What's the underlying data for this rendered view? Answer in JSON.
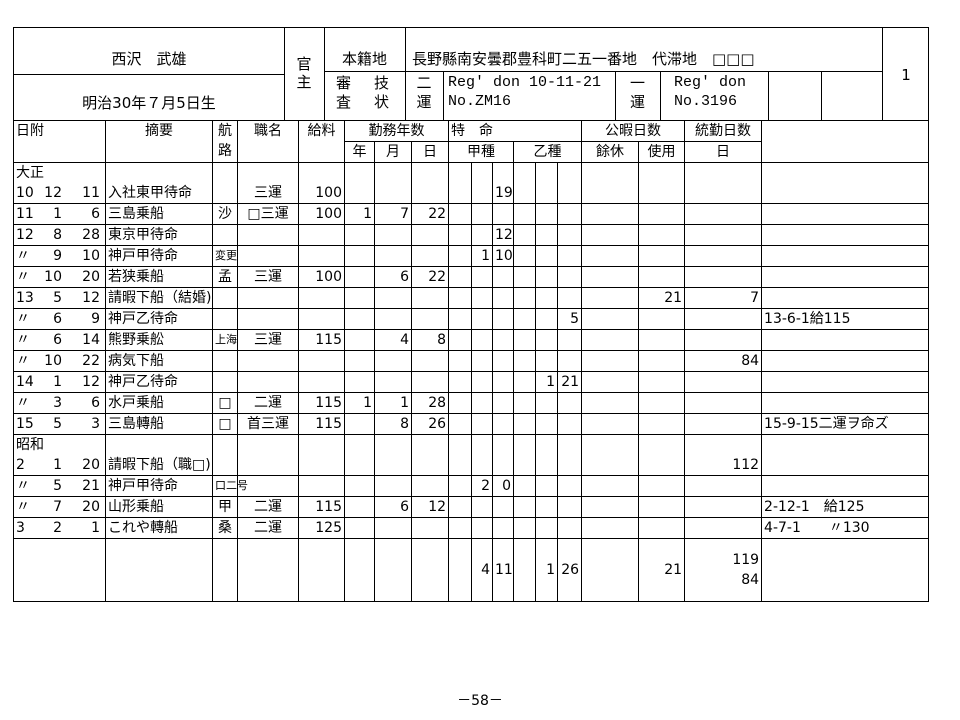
{
  "header": {
    "name": "西沢　武雄",
    "birth": "明治30年７月5日生",
    "official_top": "官",
    "official_bottom": "主",
    "domicile_label": "本籍地",
    "domicile_value": "長野縣南安曇郡豊科町二五一番地　代滞地　□□□",
    "exam_label_1": "審",
    "exam_label_2": "査",
    "skill_label_1": "技",
    "skill_label_2": "状",
    "grade2_1": "二",
    "grade2_2": "運",
    "reg2_line1": "Reg' don 10-11-21",
    "reg2_line2": "No.ZM16",
    "grade1_1": "一",
    "grade1_2": "運",
    "reg1_line1": "Reg' don",
    "reg1_line2": "No.3196",
    "sheet_number": "1"
  },
  "columns": {
    "date": "日附",
    "summary": "摘要",
    "route_1": "航",
    "route_2": "路",
    "rank": "職名",
    "pay": "給料",
    "service": "勤務年数",
    "year": "年",
    "month": "月",
    "day": "日",
    "special": "特　命",
    "type_a": "甲種",
    "type_b": "乙種",
    "leave": "公暇日数",
    "leave_rest": "餘休",
    "leave_used": "使用",
    "continuous": "統勤日数",
    "continuous_day": "日"
  },
  "rows": [
    {
      "era": "大正",
      "y": "10",
      "m": "12",
      "d": "11",
      "summary": "入社東甲待命",
      "route": "",
      "rank": "三運",
      "pay": "100",
      "sy": "",
      "sm": "",
      "sd": "",
      "a1": "",
      "a2": "",
      "a3": "19",
      "b1": "",
      "b2": "",
      "b3": "",
      "rest": "",
      "used": "",
      "cont": "",
      "note": ""
    },
    {
      "y": "11",
      "m": "1",
      "d": "6",
      "summary": "三島乗船",
      "route": "沙",
      "rank": "□三運",
      "pay": "100",
      "sy": "1",
      "sm": "7",
      "sd": "22",
      "a1": "",
      "a2": "",
      "a3": "",
      "b1": "",
      "b2": "",
      "b3": "",
      "rest": "",
      "used": "",
      "cont": "",
      "note": ""
    },
    {
      "y": "12",
      "m": "8",
      "d": "28",
      "summary": "東京甲待命",
      "route": "",
      "rank": "",
      "pay": "",
      "sy": "",
      "sm": "",
      "sd": "",
      "a1": "",
      "a2": "",
      "a3": "12",
      "b1": "",
      "b2": "",
      "b3": "",
      "rest": "",
      "used": "",
      "cont": "",
      "note": ""
    },
    {
      "y": "〃",
      "m": "9",
      "d": "10",
      "summary": "神戸甲待命",
      "route": "変更",
      "route_small": true,
      "rank": "",
      "pay": "",
      "sy": "",
      "sm": "",
      "sd": "",
      "a1": "",
      "a2": "1",
      "a3": "10",
      "b1": "",
      "b2": "",
      "b3": "",
      "rest": "",
      "used": "",
      "cont": "",
      "note": ""
    },
    {
      "y": "〃",
      "m": "10",
      "d": "20",
      "summary": "若狭乗船",
      "route": "孟",
      "rank": "三運",
      "pay": "100",
      "sy": "",
      "sm": "6",
      "sd": "22",
      "a1": "",
      "a2": "",
      "a3": "",
      "b1": "",
      "b2": "",
      "b3": "",
      "rest": "",
      "used": "",
      "cont": "",
      "note": ""
    },
    {
      "y": "13",
      "m": "5",
      "d": "12",
      "summary": "請暇下船（結婚)",
      "route": "",
      "rank": "",
      "pay": "",
      "sy": "",
      "sm": "",
      "sd": "",
      "a1": "",
      "a2": "",
      "a3": "",
      "b1": "",
      "b2": "",
      "b3": "",
      "rest": "",
      "used": "21",
      "cont": "7",
      "note": ""
    },
    {
      "y": "〃",
      "m": "6",
      "d": "9",
      "summary": "神戸乙待命",
      "route": "",
      "rank": "",
      "pay": "",
      "sy": "",
      "sm": "",
      "sd": "",
      "a1": "",
      "a2": "",
      "a3": "",
      "b1": "",
      "b2": "",
      "b3": "5",
      "rest": "",
      "used": "",
      "cont": "",
      "note": "13-6-1給115"
    },
    {
      "y": "〃",
      "m": "6",
      "d": "14",
      "summary": "熊野乗舩",
      "route": "上海",
      "route_small": true,
      "rank": "三運",
      "pay": "115",
      "sy": "",
      "sm": "4",
      "sd": "8",
      "a1": "",
      "a2": "",
      "a3": "",
      "b1": "",
      "b2": "",
      "b3": "",
      "rest": "",
      "used": "",
      "cont": "",
      "note": ""
    },
    {
      "y": "〃",
      "m": "10",
      "d": "22",
      "summary": "病気下船",
      "route": "",
      "rank": "",
      "pay": "",
      "sy": "",
      "sm": "",
      "sd": "",
      "a1": "",
      "a2": "",
      "a3": "",
      "b1": "",
      "b2": "",
      "b3": "",
      "rest": "",
      "used": "",
      "cont": "84",
      "note": ""
    },
    {
      "y": "14",
      "m": "1",
      "d": "12",
      "summary": "神戸乙待命",
      "route": "",
      "rank": "",
      "pay": "",
      "sy": "",
      "sm": "",
      "sd": "",
      "a1": "",
      "a2": "",
      "a3": "",
      "b1": "",
      "b2": "1",
      "b3": "21",
      "rest": "",
      "used": "",
      "cont": "",
      "note": ""
    },
    {
      "y": "〃",
      "m": "3",
      "d": "6",
      "summary": "水戸乗船",
      "route": "□",
      "rank": "二運",
      "pay": "115",
      "sy": "1",
      "sm": "1",
      "sd": "28",
      "a1": "",
      "a2": "",
      "a3": "",
      "b1": "",
      "b2": "",
      "b3": "",
      "rest": "",
      "used": "",
      "cont": "",
      "note": ""
    },
    {
      "y": "15",
      "m": "5",
      "d": "3",
      "summary": "三島轉船",
      "route": "□",
      "rank": "首三運",
      "pay": "115",
      "sy": "",
      "sm": "8",
      "sd": "26",
      "a1": "",
      "a2": "",
      "a3": "",
      "b1": "",
      "b2": "",
      "b3": "",
      "rest": "",
      "used": "",
      "cont": "",
      "note": "15-9-15二運ヲ命ズ"
    },
    {
      "era": "昭和",
      "y": "2",
      "m": "1",
      "d": "20",
      "summary": "請暇下船（職□)",
      "route": "",
      "rank": "",
      "pay": "",
      "sy": "",
      "sm": "",
      "sd": "",
      "a1": "",
      "a2": "",
      "a3": "",
      "b1": "",
      "b2": "",
      "b3": "",
      "rest": "",
      "used": "",
      "cont": "112",
      "note": ""
    },
    {
      "y": "〃",
      "m": "5",
      "d": "21",
      "summary": "神戸甲待命",
      "route": "口二号",
      "route_small": true,
      "rank": "",
      "pay": "",
      "sy": "",
      "sm": "",
      "sd": "",
      "a1": "",
      "a2": "2",
      "a3": "0",
      "b1": "",
      "b2": "",
      "b3": "",
      "rest": "",
      "used": "",
      "cont": "",
      "note": ""
    },
    {
      "y": "〃",
      "m": "7",
      "d": "20",
      "summary": "山形乗船",
      "route": "甲",
      "rank": "二運",
      "pay": "115",
      "sy": "",
      "sm": "6",
      "sd": "12",
      "a1": "",
      "a2": "",
      "a3": "",
      "b1": "",
      "b2": "",
      "b3": "",
      "rest": "",
      "used": "",
      "cont": "",
      "note": "2-12-1　給125"
    },
    {
      "y": "3",
      "m": "2",
      "d": "1",
      "summary": "これや轉船",
      "route": "桑",
      "rank": "二運",
      "pay": "125",
      "sy": "",
      "sm": "",
      "sd": "",
      "a1": "",
      "a2": "",
      "a3": "",
      "b1": "",
      "b2": "",
      "b3": "",
      "rest": "",
      "used": "",
      "cont": "",
      "note": " 4-7-1　　〃130"
    }
  ],
  "totals": {
    "a2": "4",
    "a3": "11",
    "b2": "1",
    "b3": "26",
    "used": "21",
    "cont_1": "119",
    "cont_2": "84"
  },
  "footer": {
    "page": "－58－"
  }
}
